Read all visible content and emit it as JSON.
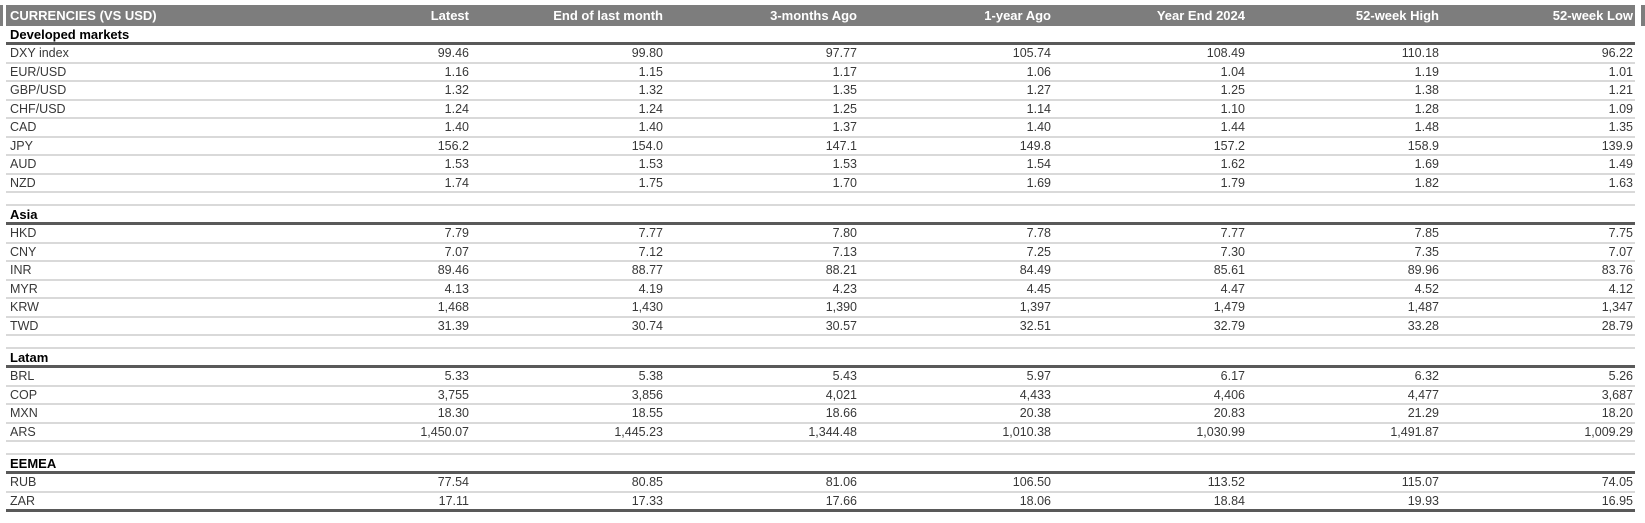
{
  "colors": {
    "header_bg": "#7d7d7d",
    "header_text": "#ffffff",
    "section_rule": "#595959",
    "row_rule": "#d9d9d9",
    "body_text": "#383838"
  },
  "chart_data": {
    "type": "table",
    "title": "CURRENCIES (VS USD)",
    "columns": [
      "Latest",
      "End of last month",
      "3-months Ago",
      "1-year Ago",
      "Year End 2024",
      "52-week High",
      "52-week Low"
    ],
    "sections": [
      {
        "name": "Developed markets",
        "rows": [
          {
            "label": "DXY index",
            "values": [
              "99.46",
              "99.80",
              "97.77",
              "105.74",
              "108.49",
              "110.18",
              "96.22"
            ]
          },
          {
            "label": "EUR/USD",
            "values": [
              "1.16",
              "1.15",
              "1.17",
              "1.06",
              "1.04",
              "1.19",
              "1.01"
            ]
          },
          {
            "label": "GBP/USD",
            "values": [
              "1.32",
              "1.32",
              "1.35",
              "1.27",
              "1.25",
              "1.38",
              "1.21"
            ]
          },
          {
            "label": "CHF/USD",
            "values": [
              "1.24",
              "1.24",
              "1.25",
              "1.14",
              "1.10",
              "1.28",
              "1.09"
            ]
          },
          {
            "label": "CAD",
            "values": [
              "1.40",
              "1.40",
              "1.37",
              "1.40",
              "1.44",
              "1.48",
              "1.35"
            ]
          },
          {
            "label": "JPY",
            "values": [
              "156.2",
              "154.0",
              "147.1",
              "149.8",
              "157.2",
              "158.9",
              "139.9"
            ]
          },
          {
            "label": "AUD",
            "values": [
              "1.53",
              "1.53",
              "1.53",
              "1.54",
              "1.62",
              "1.69",
              "1.49"
            ]
          },
          {
            "label": "NZD",
            "values": [
              "1.74",
              "1.75",
              "1.70",
              "1.69",
              "1.79",
              "1.82",
              "1.63"
            ]
          }
        ]
      },
      {
        "name": "Asia",
        "rows": [
          {
            "label": "HKD",
            "values": [
              "7.79",
              "7.77",
              "7.80",
              "7.78",
              "7.77",
              "7.85",
              "7.75"
            ]
          },
          {
            "label": "CNY",
            "values": [
              "7.07",
              "7.12",
              "7.13",
              "7.25",
              "7.30",
              "7.35",
              "7.07"
            ]
          },
          {
            "label": "INR",
            "values": [
              "89.46",
              "88.77",
              "88.21",
              "84.49",
              "85.61",
              "89.96",
              "83.76"
            ]
          },
          {
            "label": "MYR",
            "values": [
              "4.13",
              "4.19",
              "4.23",
              "4.45",
              "4.47",
              "4.52",
              "4.12"
            ]
          },
          {
            "label": "KRW",
            "values": [
              "1,468",
              "1,430",
              "1,390",
              "1,397",
              "1,479",
              "1,487",
              "1,347"
            ]
          },
          {
            "label": "TWD",
            "values": [
              "31.39",
              "30.74",
              "30.57",
              "32.51",
              "32.79",
              "33.28",
              "28.79"
            ]
          }
        ]
      },
      {
        "name": "Latam",
        "rows": [
          {
            "label": "BRL",
            "values": [
              "5.33",
              "5.38",
              "5.43",
              "5.97",
              "6.17",
              "6.32",
              "5.26"
            ]
          },
          {
            "label": "COP",
            "values": [
              "3,755",
              "3,856",
              "4,021",
              "4,433",
              "4,406",
              "4,477",
              "3,687"
            ]
          },
          {
            "label": "MXN",
            "values": [
              "18.30",
              "18.55",
              "18.66",
              "20.38",
              "20.83",
              "21.29",
              "18.20"
            ]
          },
          {
            "label": "ARS",
            "values": [
              "1,450.07",
              "1,445.23",
              "1,344.48",
              "1,010.38",
              "1,030.99",
              "1,491.87",
              "1,009.29"
            ]
          }
        ]
      },
      {
        "name": "EEMEA",
        "rows": [
          {
            "label": "RUB",
            "values": [
              "77.54",
              "80.85",
              "81.06",
              "106.50",
              "113.52",
              "115.07",
              "74.05"
            ]
          },
          {
            "label": "ZAR",
            "values": [
              "17.11",
              "17.33",
              "17.66",
              "18.06",
              "18.84",
              "19.93",
              "16.95"
            ]
          }
        ]
      }
    ]
  }
}
